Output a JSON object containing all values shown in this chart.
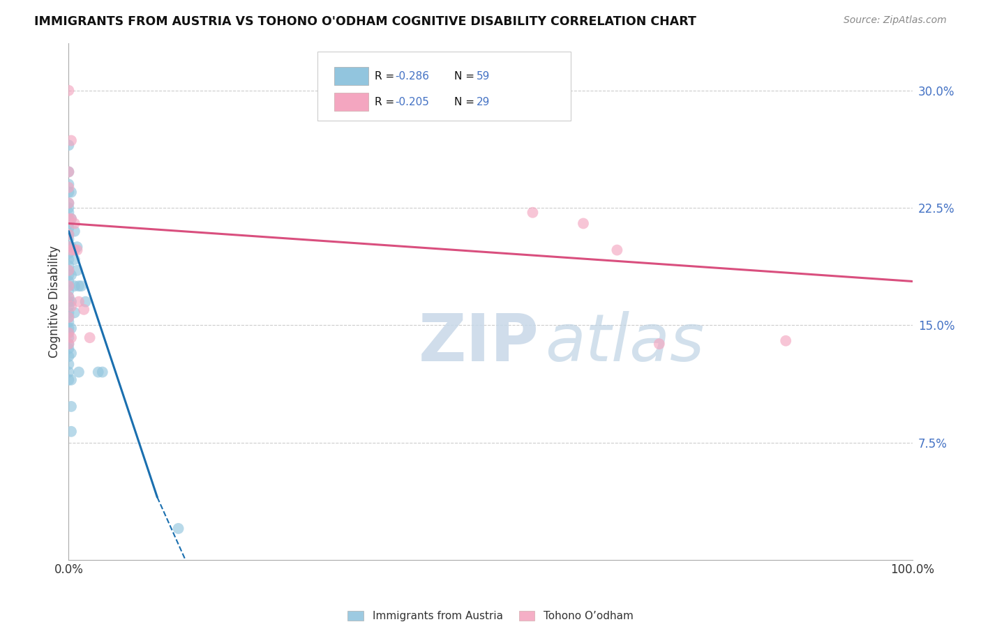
{
  "title": "IMMIGRANTS FROM AUSTRIA VS TOHONO O'ODHAM COGNITIVE DISABILITY CORRELATION CHART",
  "source": "Source: ZipAtlas.com",
  "xlabel_blue": "Immigrants from Austria",
  "xlabel_pink": "Tohono O’odham",
  "ylabel": "Cognitive Disability",
  "xlim": [
    0.0,
    1.0
  ],
  "ylim": [
    0.0,
    0.33
  ],
  "yticks": [
    0.075,
    0.15,
    0.225,
    0.3
  ],
  "ytick_labels": [
    "7.5%",
    "15.0%",
    "22.5%",
    "30.0%"
  ],
  "xtick_labels": [
    "0.0%",
    "100.0%"
  ],
  "legend_blue_R": "R = -0.286",
  "legend_blue_N": "N = 59",
  "legend_pink_R": "R = -0.205",
  "legend_pink_N": "N = 29",
  "blue_color": "#92c5de",
  "pink_color": "#f4a6c0",
  "trend_blue_color": "#1a6faf",
  "trend_pink_color": "#d94f7e",
  "blue_scatter": [
    [
      0.0,
      0.265
    ],
    [
      0.0,
      0.248
    ],
    [
      0.0,
      0.24
    ],
    [
      0.0,
      0.235
    ],
    [
      0.0,
      0.228
    ],
    [
      0.0,
      0.225
    ],
    [
      0.0,
      0.222
    ],
    [
      0.0,
      0.218
    ],
    [
      0.0,
      0.215
    ],
    [
      0.0,
      0.212
    ],
    [
      0.0,
      0.208
    ],
    [
      0.0,
      0.205
    ],
    [
      0.0,
      0.2
    ],
    [
      0.0,
      0.196
    ],
    [
      0.0,
      0.192
    ],
    [
      0.0,
      0.188
    ],
    [
      0.0,
      0.185
    ],
    [
      0.0,
      0.182
    ],
    [
      0.0,
      0.178
    ],
    [
      0.0,
      0.175
    ],
    [
      0.0,
      0.172
    ],
    [
      0.0,
      0.168
    ],
    [
      0.0,
      0.165
    ],
    [
      0.0,
      0.162
    ],
    [
      0.0,
      0.158
    ],
    [
      0.0,
      0.155
    ],
    [
      0.0,
      0.152
    ],
    [
      0.0,
      0.148
    ],
    [
      0.0,
      0.145
    ],
    [
      0.0,
      0.142
    ],
    [
      0.0,
      0.138
    ],
    [
      0.0,
      0.135
    ],
    [
      0.0,
      0.13
    ],
    [
      0.0,
      0.125
    ],
    [
      0.0,
      0.12
    ],
    [
      0.0,
      0.115
    ],
    [
      0.003,
      0.235
    ],
    [
      0.003,
      0.218
    ],
    [
      0.003,
      0.2
    ],
    [
      0.003,
      0.182
    ],
    [
      0.003,
      0.165
    ],
    [
      0.003,
      0.148
    ],
    [
      0.003,
      0.132
    ],
    [
      0.003,
      0.115
    ],
    [
      0.003,
      0.098
    ],
    [
      0.003,
      0.082
    ],
    [
      0.007,
      0.21
    ],
    [
      0.007,
      0.192
    ],
    [
      0.007,
      0.175
    ],
    [
      0.007,
      0.158
    ],
    [
      0.01,
      0.2
    ],
    [
      0.01,
      0.185
    ],
    [
      0.012,
      0.175
    ],
    [
      0.012,
      0.12
    ],
    [
      0.015,
      0.175
    ],
    [
      0.02,
      0.165
    ],
    [
      0.035,
      0.12
    ],
    [
      0.04,
      0.12
    ],
    [
      0.13,
      0.02
    ]
  ],
  "pink_scatter": [
    [
      0.0,
      0.3
    ],
    [
      0.0,
      0.248
    ],
    [
      0.0,
      0.238
    ],
    [
      0.0,
      0.228
    ],
    [
      0.0,
      0.218
    ],
    [
      0.0,
      0.208
    ],
    [
      0.0,
      0.2
    ],
    [
      0.0,
      0.185
    ],
    [
      0.0,
      0.175
    ],
    [
      0.0,
      0.168
    ],
    [
      0.0,
      0.155
    ],
    [
      0.0,
      0.145
    ],
    [
      0.0,
      0.138
    ],
    [
      0.003,
      0.268
    ],
    [
      0.003,
      0.218
    ],
    [
      0.003,
      0.198
    ],
    [
      0.003,
      0.162
    ],
    [
      0.003,
      0.142
    ],
    [
      0.007,
      0.215
    ],
    [
      0.007,
      0.198
    ],
    [
      0.01,
      0.198
    ],
    [
      0.012,
      0.165
    ],
    [
      0.018,
      0.16
    ],
    [
      0.025,
      0.142
    ],
    [
      0.55,
      0.222
    ],
    [
      0.61,
      0.215
    ],
    [
      0.65,
      0.198
    ],
    [
      0.7,
      0.138
    ],
    [
      0.85,
      0.14
    ]
  ],
  "blue_trend_start_x": 0.0,
  "blue_trend_start_y": 0.21,
  "blue_trend_solid_end_x": 0.105,
  "blue_trend_solid_end_y": 0.04,
  "blue_trend_dash_end_x": 0.155,
  "blue_trend_dash_end_y": -0.02,
  "pink_trend_start_x": 0.0,
  "pink_trend_start_y": 0.215,
  "pink_trend_end_x": 1.0,
  "pink_trend_end_y": 0.178,
  "grid_color": "#cccccc",
  "background_color": "#ffffff"
}
